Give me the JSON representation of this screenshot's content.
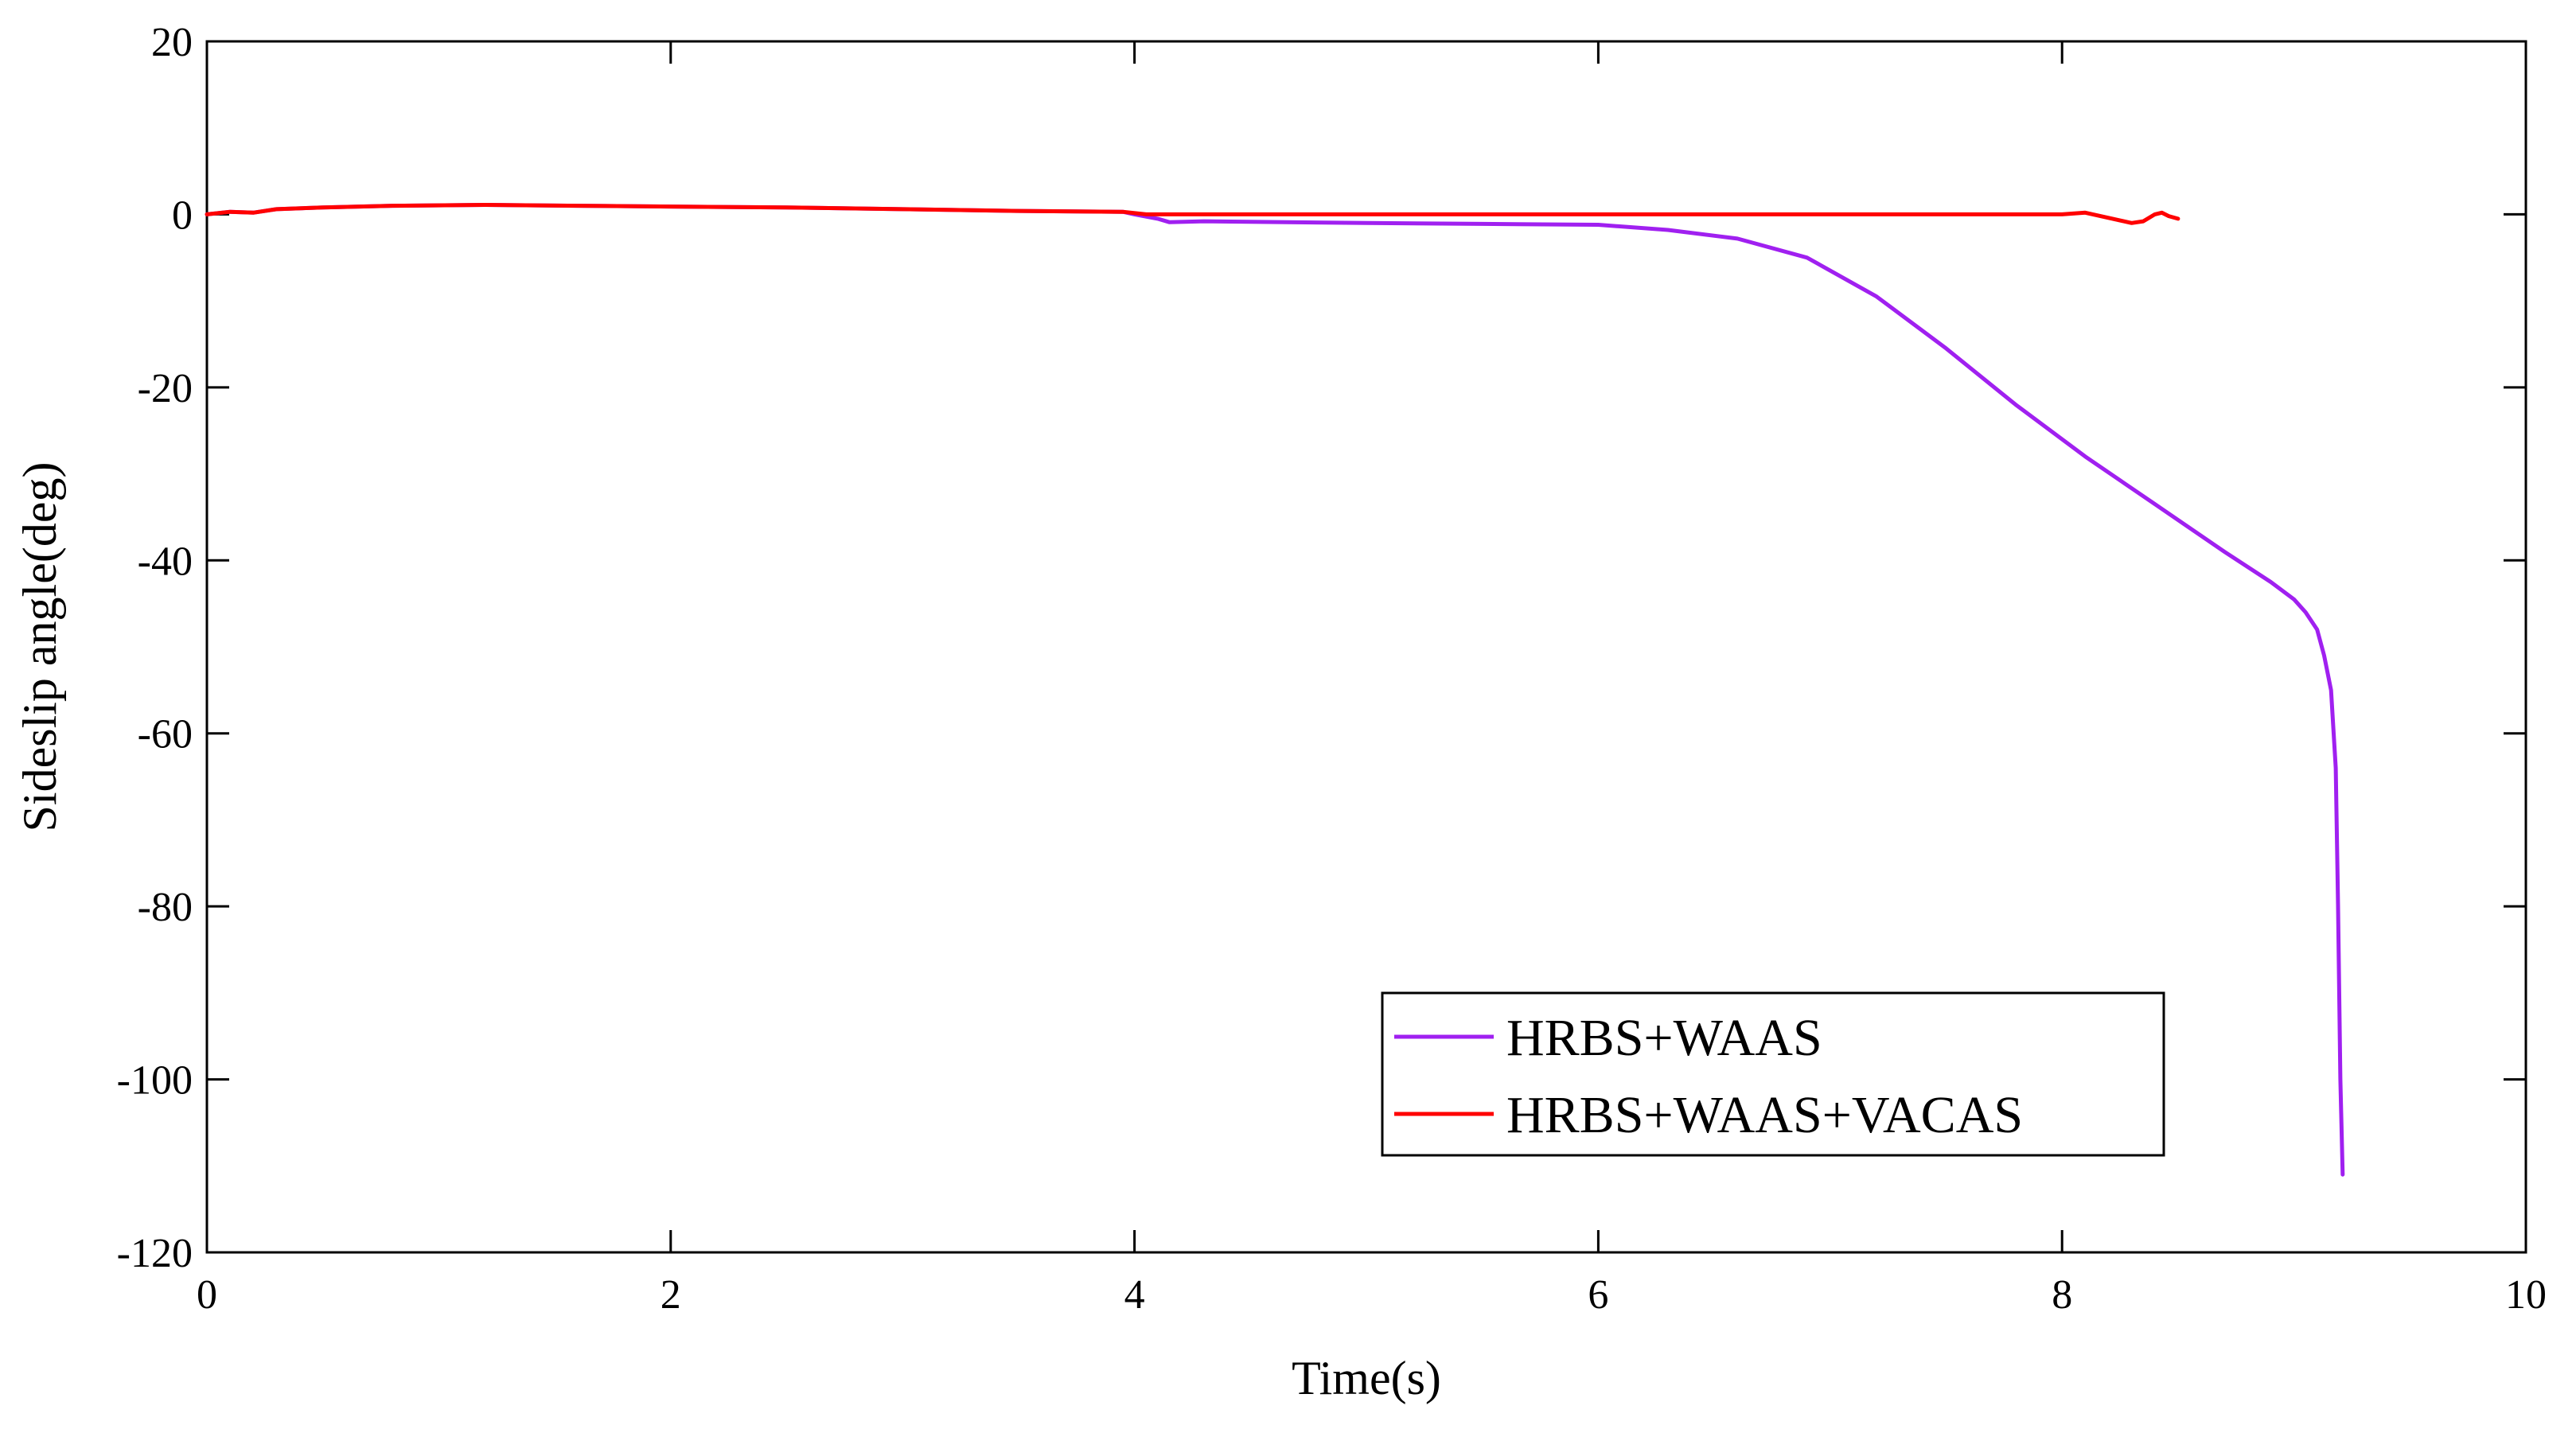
{
  "chart_data": {
    "type": "line",
    "xlabel": "Time(s)",
    "ylabel": "Sideslip angle(deg)",
    "xlim": [
      0,
      10
    ],
    "ylim": [
      -120,
      20
    ],
    "x_ticks": [
      "0",
      "2",
      "4",
      "6",
      "8",
      "10"
    ],
    "y_ticks": [
      "20",
      "0",
      "-20",
      "-40",
      "-60",
      "-80",
      "-100",
      "-120"
    ],
    "grid": false,
    "legend_position": "bottom-right",
    "series": [
      {
        "name": "HRBS+WAAS",
        "color": "#a020f0",
        "x": [
          0,
          0.1,
          0.2,
          0.3,
          0.5,
          0.8,
          1.2,
          1.6,
          2.0,
          2.5,
          3.0,
          3.5,
          3.95,
          4.0,
          4.1,
          4.15,
          4.3,
          5.0,
          5.5,
          6.0,
          6.3,
          6.6,
          6.9,
          7.2,
          7.5,
          7.8,
          8.1,
          8.4,
          8.7,
          8.9,
          9.0,
          9.05,
          9.1,
          9.13,
          9.16,
          9.18,
          9.19,
          9.2,
          9.21
        ],
        "y": [
          0,
          0.3,
          0.2,
          0.6,
          0.8,
          1.0,
          1.1,
          1.0,
          0.9,
          0.8,
          0.6,
          0.4,
          0.3,
          0.0,
          -0.5,
          -0.9,
          -0.8,
          -1.0,
          -1.1,
          -1.2,
          -1.8,
          -2.8,
          -5.0,
          -9.5,
          -15.5,
          -22.0,
          -28.0,
          -33.5,
          -39.0,
          -42.5,
          -44.5,
          -46.0,
          -48.0,
          -51.0,
          -55.0,
          -64.0,
          -80.0,
          -100.0,
          -111.0
        ]
      },
      {
        "name": "HRBS+WAAS+VACAS",
        "color": "#ff0000",
        "x": [
          0,
          0.1,
          0.2,
          0.3,
          0.5,
          0.8,
          1.2,
          1.6,
          2.0,
          2.5,
          3.0,
          3.5,
          3.95,
          4.05,
          4.5,
          5.0,
          5.5,
          6.0,
          6.5,
          7.0,
          7.5,
          8.0,
          8.1,
          8.2,
          8.3,
          8.35,
          8.4,
          8.43,
          8.46,
          8.5
        ],
        "y": [
          0,
          0.3,
          0.2,
          0.6,
          0.8,
          1.0,
          1.1,
          1.0,
          0.9,
          0.8,
          0.6,
          0.4,
          0.3,
          0.0,
          0.0,
          0.0,
          0.0,
          0.0,
          0.0,
          0.0,
          0.0,
          0.0,
          0.2,
          -0.4,
          -1.0,
          -0.8,
          0.0,
          0.2,
          -0.2,
          -0.5
        ]
      }
    ]
  }
}
